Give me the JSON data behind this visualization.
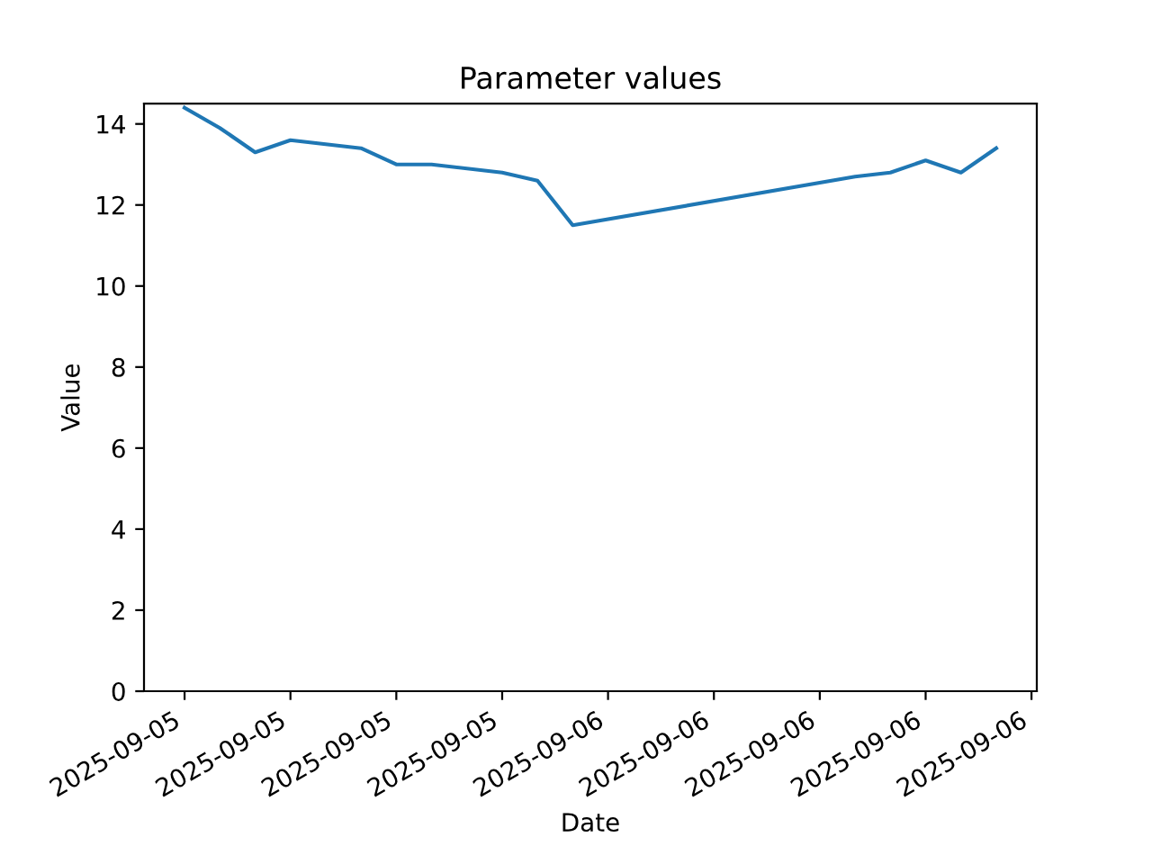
{
  "chart_data": {
    "type": "line",
    "title": "Parameter values",
    "xlabel": "Date",
    "ylabel": "Value",
    "x": [
      "2025-09-05T12:00",
      "2025-09-05T13:00",
      "2025-09-05T14:00",
      "2025-09-05T15:00",
      "2025-09-05T17:00",
      "2025-09-05T18:00",
      "2025-09-05T19:00",
      "2025-09-05T21:00",
      "2025-09-05T22:00",
      "2025-09-05T23:00",
      "2025-09-06T07:00",
      "2025-09-06T08:00",
      "2025-09-06T09:00",
      "2025-09-06T10:00",
      "2025-09-06T11:00"
    ],
    "series": [
      {
        "color": "#1f77b4",
        "values": [
          14.4,
          13.9,
          13.3,
          13.6,
          13.4,
          13.0,
          13.0,
          12.8,
          12.6,
          11.5,
          12.7,
          12.8,
          13.1,
          12.8,
          13.4
        ]
      }
    ],
    "xlim": [
      "2025-09-05T10:51",
      "2025-09-06T12:09"
    ],
    "xticks": [
      {
        "value": "2025-09-05T12:00",
        "label": "2025-09-05"
      },
      {
        "value": "2025-09-05T15:00",
        "label": "2025-09-05"
      },
      {
        "value": "2025-09-05T18:00",
        "label": "2025-09-05"
      },
      {
        "value": "2025-09-05T21:00",
        "label": "2025-09-05"
      },
      {
        "value": "2025-09-06T00:00",
        "label": "2025-09-06"
      },
      {
        "value": "2025-09-06T03:00",
        "label": "2025-09-06"
      },
      {
        "value": "2025-09-06T06:00",
        "label": "2025-09-06"
      },
      {
        "value": "2025-09-06T09:00",
        "label": "2025-09-06"
      },
      {
        "value": "2025-09-06T12:00",
        "label": "2025-09-06"
      }
    ],
    "ylim": [
      0,
      14.5
    ],
    "yticks": [
      0,
      2,
      4,
      6,
      8,
      10,
      12,
      14
    ],
    "grid": false,
    "legend": false
  }
}
